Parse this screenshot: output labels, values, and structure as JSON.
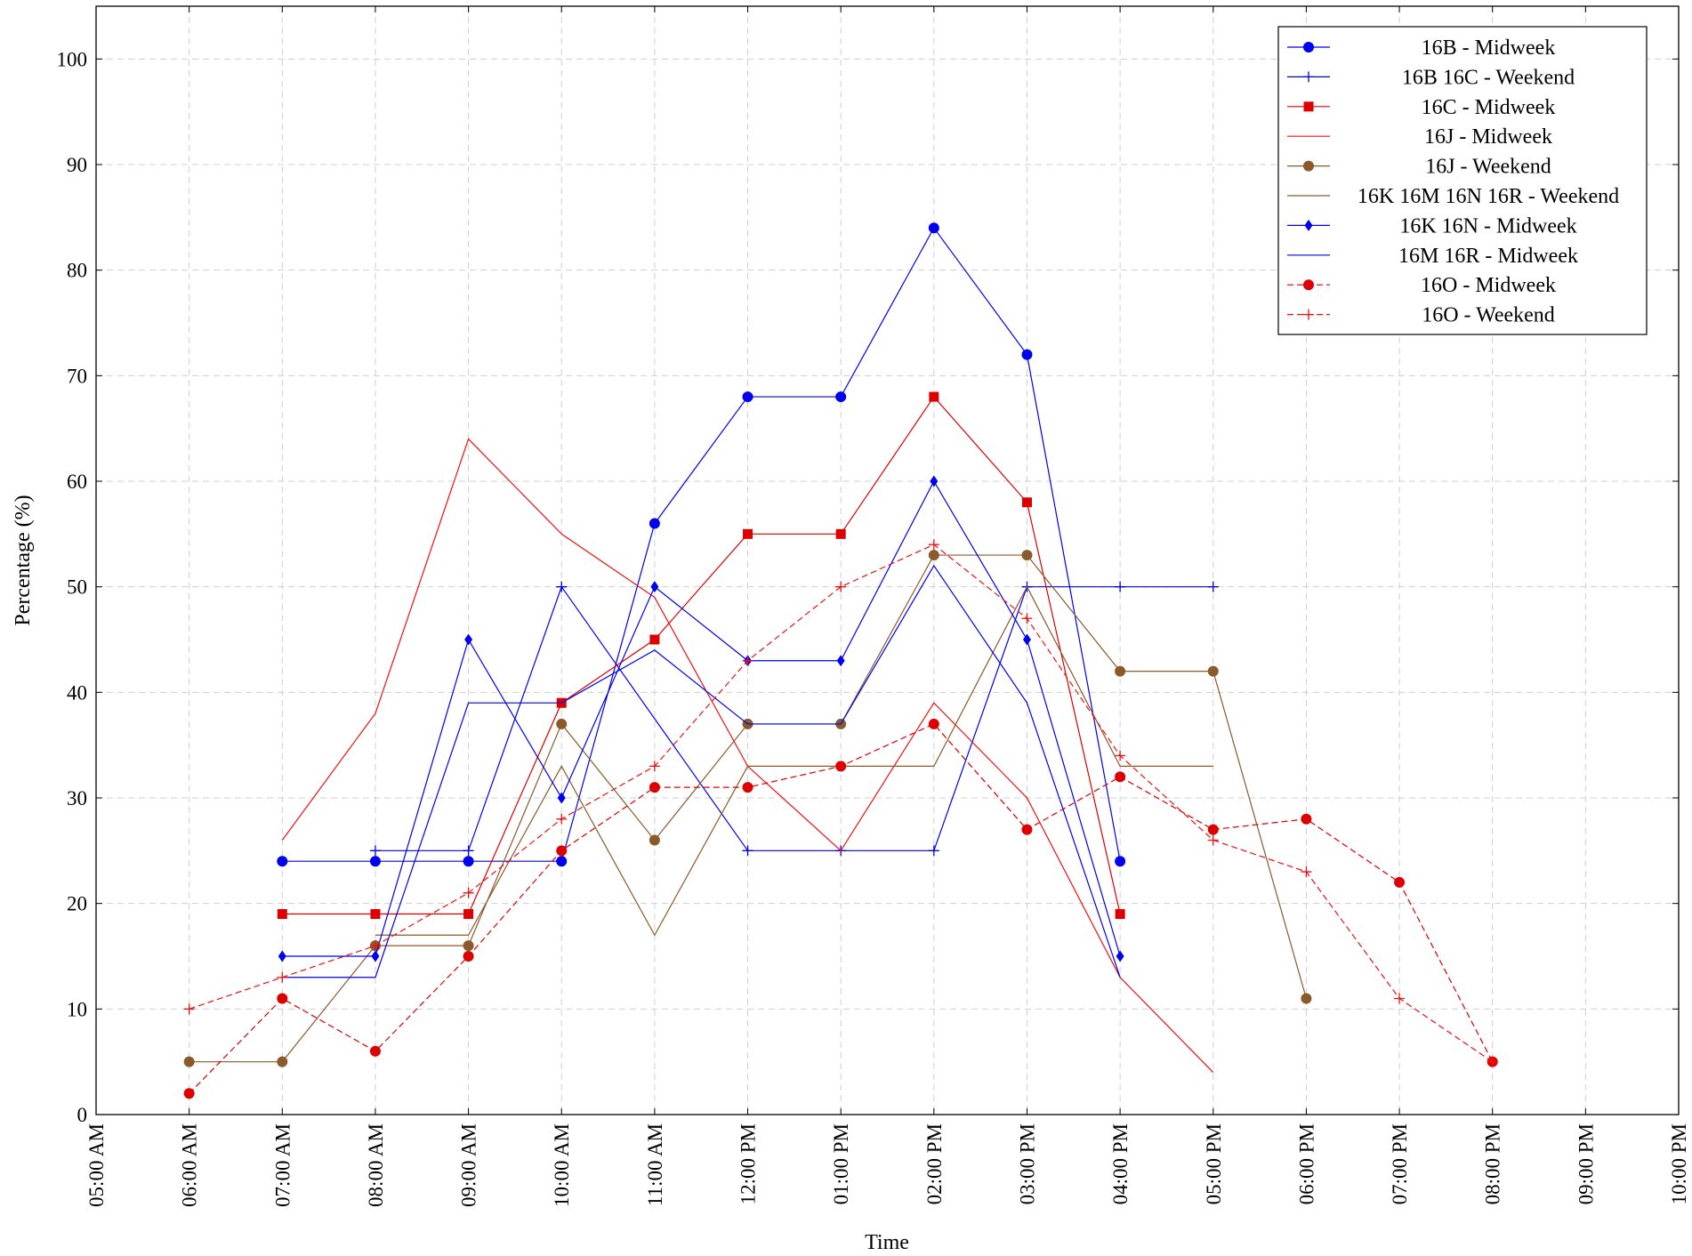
{
  "chart_data": {
    "type": "line",
    "title": "",
    "xlabel": "Time",
    "ylabel": "Percentage (%)",
    "x_ticks": [
      "05:00 AM",
      "06:00 AM",
      "07:00 AM",
      "08:00 AM",
      "09:00 AM",
      "10:00 AM",
      "11:00 AM",
      "12:00 PM",
      "01:00 PM",
      "02:00 PM",
      "03:00 PM",
      "04:00 PM",
      "05:00 PM",
      "06:00 PM",
      "07:00 PM",
      "08:00 PM",
      "09:00 PM",
      "10:00 PM"
    ],
    "xlim": [
      5,
      22
    ],
    "ylim": [
      0,
      105
    ],
    "y_ticks": [
      0,
      10,
      20,
      30,
      40,
      50,
      60,
      70,
      80,
      90,
      100
    ],
    "grid": true,
    "legend_position": "top-right",
    "series": [
      {
        "name": "16B - Midweek",
        "color": "#0000ee",
        "marker": "circle",
        "dashed": false,
        "x": [
          7,
          8,
          9,
          10,
          11,
          12,
          13,
          14,
          15,
          16
        ],
        "y": [
          24,
          24,
          24,
          24,
          56,
          68,
          68,
          84,
          72,
          24
        ]
      },
      {
        "name": "16B  16C - Weekend",
        "color": "#0000ee",
        "marker": "plus",
        "dashed": false,
        "x": [
          8,
          9,
          10,
          12,
          13,
          14,
          15,
          16,
          17
        ],
        "y": [
          25,
          25,
          50,
          25,
          25,
          25,
          50,
          50,
          50
        ]
      },
      {
        "name": "16C - Midweek",
        "color": "#dd0000",
        "marker": "square",
        "dashed": false,
        "x": [
          7,
          8,
          9,
          10,
          11,
          12,
          13,
          14,
          15,
          16
        ],
        "y": [
          19,
          19,
          19,
          39,
          45,
          55,
          55,
          68,
          58,
          19
        ]
      },
      {
        "name": "16J - Midweek",
        "color": "#ee1111",
        "marker": "none",
        "dashed": false,
        "x": [
          7,
          8,
          9,
          10,
          11,
          12,
          13,
          14,
          15,
          16,
          17
        ],
        "y": [
          26,
          38,
          64,
          55,
          49,
          33,
          25,
          39,
          30,
          13,
          4
        ]
      },
      {
        "name": "16J - Weekend",
        "color": "#8b5a2b",
        "marker": "circle",
        "dashed": false,
        "x": [
          6,
          7,
          8,
          9,
          10,
          11,
          12,
          13,
          14,
          15,
          16,
          17,
          18
        ],
        "y": [
          5,
          5,
          16,
          16,
          37,
          26,
          37,
          37,
          53,
          53,
          42,
          42,
          11
        ]
      },
      {
        "name": "16K  16M  16N  16R - Weekend",
        "color": "#8b5a2b",
        "marker": "none",
        "dashed": false,
        "x": [
          8,
          9,
          10,
          11,
          12,
          13,
          14,
          15,
          16,
          17
        ],
        "y": [
          17,
          17,
          33,
          17,
          33,
          33,
          33,
          50,
          33,
          33
        ]
      },
      {
        "name": "16K  16N - Midweek",
        "color": "#0000ee",
        "marker": "diamond",
        "dashed": false,
        "x": [
          7,
          8,
          9,
          10,
          11,
          12,
          13,
          14,
          15,
          16
        ],
        "y": [
          15,
          15,
          45,
          30,
          50,
          43,
          43,
          60,
          45,
          15
        ]
      },
      {
        "name": "16M  16R - Midweek",
        "color": "#0000ee",
        "marker": "none",
        "dashed": false,
        "x": [
          7,
          8,
          9,
          10,
          11,
          12,
          13,
          14,
          15,
          16
        ],
        "y": [
          13,
          13,
          39,
          39,
          44,
          37,
          37,
          52,
          39,
          13
        ]
      },
      {
        "name": "16O - Midweek",
        "color": "#dd0000",
        "marker": "circle",
        "dashed": true,
        "x": [
          6,
          7,
          8,
          9,
          10,
          11,
          12,
          13,
          14,
          15,
          16,
          17,
          18,
          19,
          20
        ],
        "y": [
          2,
          11,
          6,
          15,
          25,
          31,
          31,
          33,
          37,
          27,
          32,
          27,
          28,
          22,
          5
        ]
      },
      {
        "name": "16O - Weekend",
        "color": "#ee1111",
        "marker": "plus",
        "dashed": true,
        "x": [
          6,
          7,
          8,
          9,
          10,
          11,
          12,
          13,
          14,
          15,
          16,
          17,
          18,
          19,
          20
        ],
        "y": [
          10,
          13,
          16,
          21,
          28,
          33,
          43,
          50,
          54,
          47,
          34,
          26,
          23,
          11,
          5
        ]
      }
    ]
  }
}
